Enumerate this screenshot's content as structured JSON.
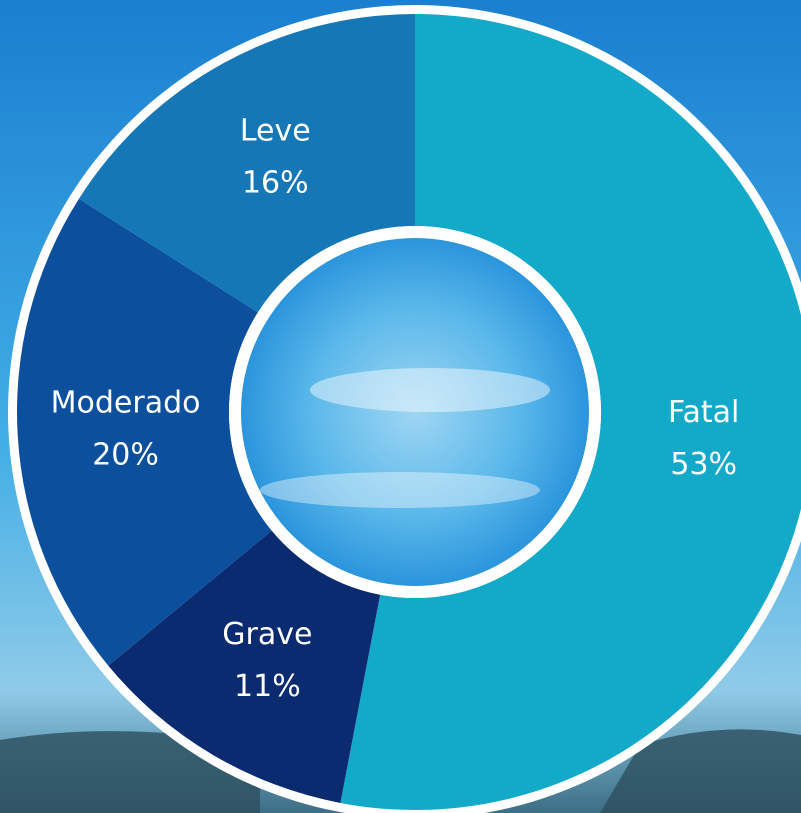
{
  "chart_data": {
    "type": "donut",
    "categories": [
      "Fatal",
      "Grave",
      "Moderado",
      "Leve"
    ],
    "values": [
      53,
      11,
      20,
      16
    ],
    "value_labels": [
      "53%",
      "11%",
      "20%",
      "16%"
    ],
    "colors": [
      "#13a9c9",
      "#0b2b70",
      "#0c4f9c",
      "#1677b6"
    ]
  }
}
